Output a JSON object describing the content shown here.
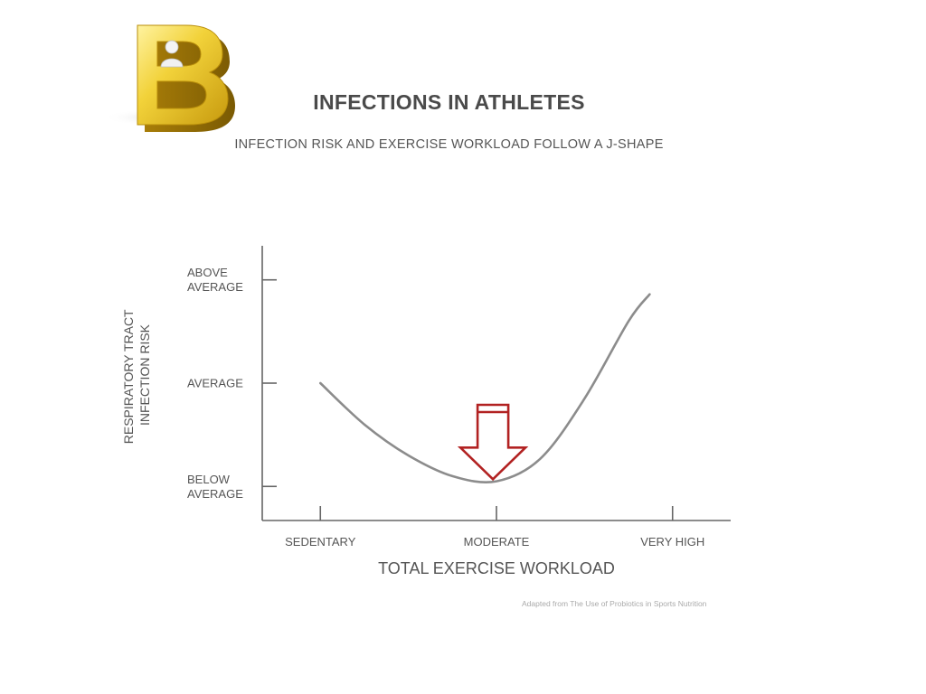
{
  "header": {
    "title": "INFECTIONS IN ATHLETES",
    "subtitle": "INFECTION RISK AND EXERCISE WORKLOAD FOLLOW A J-SHAPE"
  },
  "logo": {
    "letter": "B",
    "icon": "letter-b-logo-icon"
  },
  "chart_data": {
    "type": "line",
    "title": "INFECTIONS IN ATHLETES",
    "subtitle": "INFECTION RISK AND EXERCISE WORKLOAD FOLLOW A J-SHAPE",
    "xlabel": "TOTAL EXERCISE WORKLOAD",
    "ylabel_lines": [
      "RESPIRATORY TRACT",
      "INFECTION RISK"
    ],
    "x_categories": [
      "SEDENTARY",
      "MODERATE",
      "VERY HIGH"
    ],
    "y_categories": [
      {
        "lines": [
          "BELOW",
          "AVERAGE"
        ]
      },
      {
        "lines": [
          "AVERAGE"
        ]
      },
      {
        "lines": [
          "ABOVE",
          "AVERAGE"
        ]
      }
    ],
    "xlim": [
      -0.33,
      2.33
    ],
    "ylim": [
      -0.33,
      2.33
    ],
    "series": [
      {
        "x": [
          0,
          0.25,
          0.5,
          0.75,
          1.0,
          1.25,
          1.5,
          1.75,
          1.87
        ],
        "y": [
          1.0,
          0.6,
          0.3,
          0.1,
          0.05,
          0.27,
          0.85,
          1.6,
          1.86
        ],
        "color": "#8c8c8c"
      }
    ],
    "annotation": {
      "type": "arrow-down",
      "x": 0.98,
      "y_top": 0.79,
      "y_tip": 0.07,
      "color": "#b22222"
    },
    "grid": false,
    "legend": "none"
  },
  "source_note": "Adapted from The Use of Probiotics in Sports Nutrition"
}
